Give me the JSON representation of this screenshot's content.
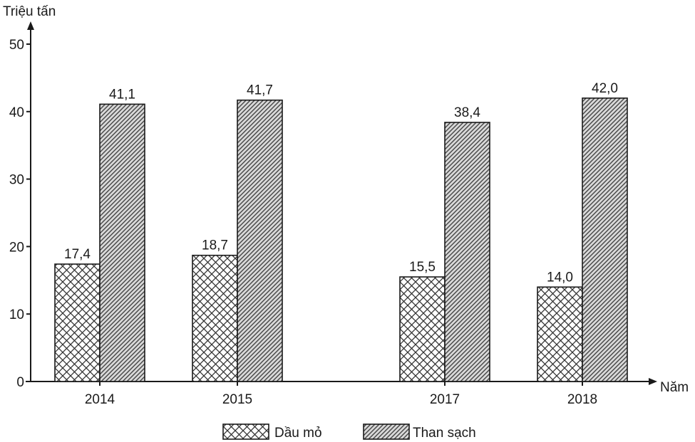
{
  "chart_data": {
    "type": "bar",
    "ylabel": "Triệu tấn",
    "xlabel": "Năm",
    "categories": [
      "2014",
      "2015",
      "2017",
      "2018"
    ],
    "ylim": [
      0,
      50
    ],
    "yticks": [
      0,
      10,
      20,
      30,
      40,
      50
    ],
    "series": [
      {
        "name": "Dầu mỏ",
        "values": [
          17.4,
          18.7,
          15.5,
          14.0
        ],
        "labels": [
          "17,4",
          "18,7",
          "15,5",
          "14,0"
        ],
        "pattern": "crosshatch"
      },
      {
        "name": "Than sạch",
        "values": [
          41.1,
          41.7,
          38.4,
          42.0
        ],
        "labels": [
          "41,1",
          "41,7",
          "38,4",
          "42,0"
        ],
        "pattern": "diagonal"
      }
    ],
    "legend_position": "bottom",
    "grid": false,
    "colors": {
      "axis": "#1a1a1a",
      "bar_fill": "#ffffff",
      "hatch": "#333333"
    }
  }
}
